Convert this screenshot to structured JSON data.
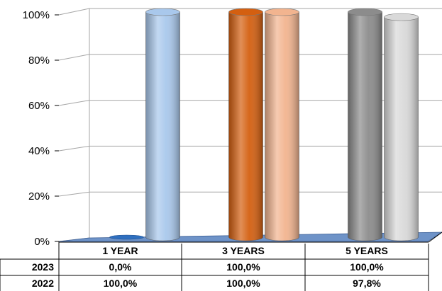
{
  "chart_data": {
    "type": "bar",
    "categories": [
      "1 YEAR",
      "3 YEARS",
      "5 YEARS"
    ],
    "series": [
      {
        "name": "2023",
        "values": [
          0.0,
          100.0,
          100.0
        ],
        "labels": [
          "0,0%",
          "100,0%",
          "100,0%"
        ]
      },
      {
        "name": "2022",
        "values": [
          100.0,
          100.0,
          97.8
        ],
        "labels": [
          "100,0%",
          "100,0%",
          "97,8%"
        ]
      }
    ],
    "ylim": [
      0,
      100
    ],
    "yticks": [
      "0%",
      "20%",
      "40%",
      "60%",
      "80%",
      "100%"
    ],
    "grid": true,
    "legend": "data table below chart"
  },
  "colors": {
    "2023": [
      "#2e6fbf",
      "#d45f10",
      "#8c8c8c"
    ],
    "2022": [
      "#a9c8ec",
      "#f2b48f",
      "#d9d9d9"
    ],
    "floor": "#6e93c8",
    "grid": "#a6a6a6"
  }
}
